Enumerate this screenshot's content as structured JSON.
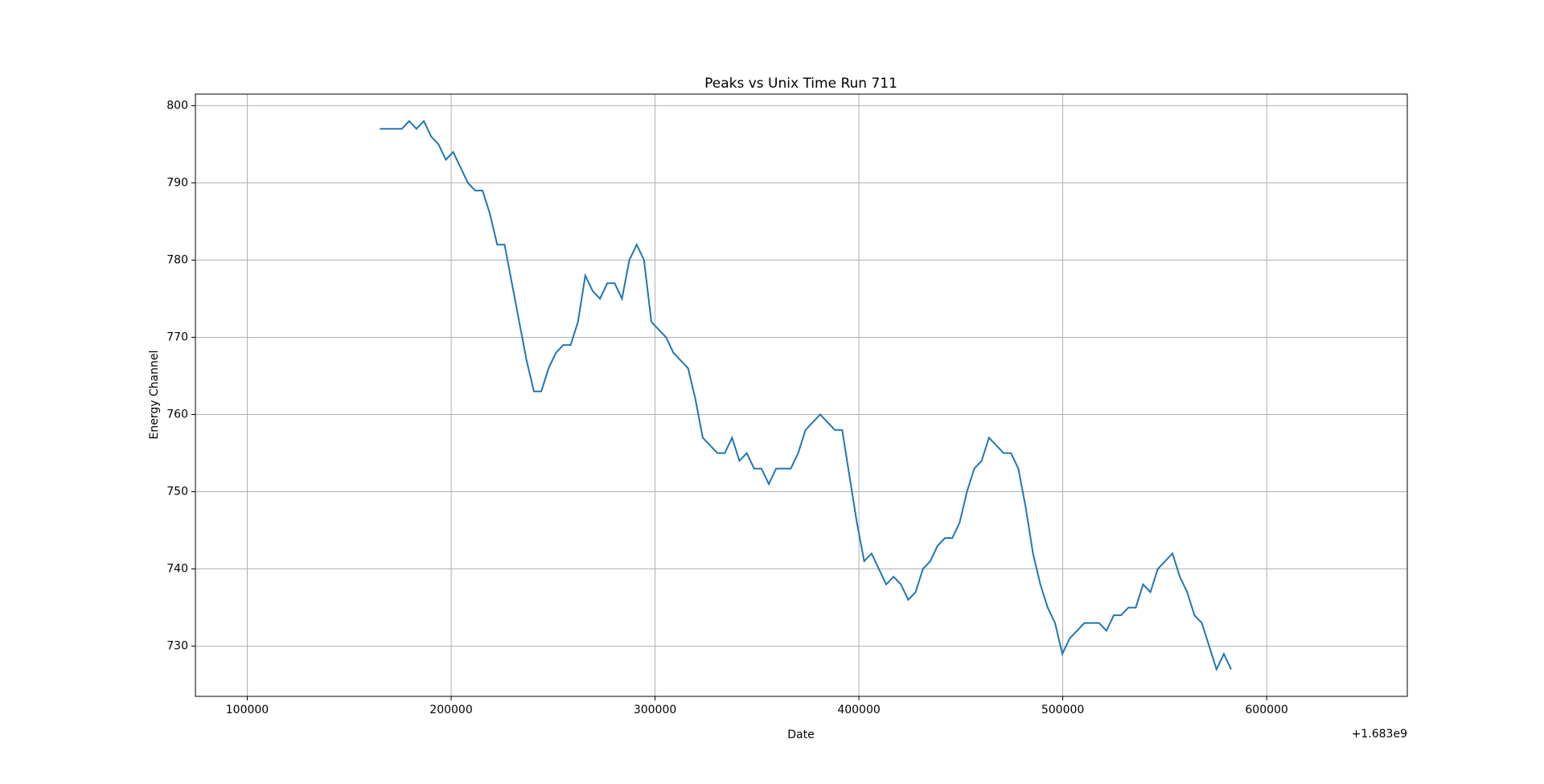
{
  "chart_data": {
    "type": "line",
    "title": "Peaks vs Unix Time Run 711",
    "x_label": "Date",
    "y_label": "Energy Channel",
    "x_offset_label": "+1.683e9",
    "x": [
      165000,
      168600,
      172200,
      175800,
      179400,
      183000,
      186600,
      190200,
      193800,
      197400,
      201000,
      204600,
      208200,
      211800,
      215400,
      219000,
      222600,
      226200,
      229800,
      233400,
      237000,
      240600,
      244200,
      247800,
      251400,
      255000,
      258600,
      262200,
      265800,
      269400,
      273000,
      276600,
      280200,
      283800,
      287400,
      291000,
      294600,
      298200,
      301800,
      305400,
      309000,
      312600,
      316200,
      319800,
      323400,
      327000,
      330600,
      334200,
      337800,
      341400,
      345000,
      348600,
      352200,
      355800,
      359400,
      363000,
      366600,
      370200,
      373800,
      377400,
      381000,
      384600,
      388200,
      391800,
      395400,
      399000,
      402600,
      406200,
      409800,
      413400,
      417000,
      420600,
      424200,
      427800,
      431400,
      435000,
      438600,
      442200,
      445800,
      449400,
      453000,
      456600,
      460200,
      463800,
      467400,
      471000,
      474600,
      478200,
      481800,
      485400,
      489000,
      492600,
      496200,
      499800,
      503400,
      507000,
      510600,
      514200,
      517800,
      521400,
      525000,
      528600,
      532200,
      535800,
      539400,
      543000,
      546600,
      550200,
      553800,
      557400,
      561000,
      564600,
      568200,
      571800,
      575400,
      579000,
      582600
    ],
    "series": [
      {
        "name": "Peaks",
        "color": "#1f77b4",
        "values": [
          797,
          797,
          797,
          797,
          798,
          797,
          798,
          796,
          795,
          793,
          794,
          792,
          790,
          789,
          789,
          786,
          782,
          782,
          777,
          772,
          767,
          763,
          763,
          766,
          768,
          769,
          769,
          772,
          778,
          776,
          775,
          777,
          777,
          775,
          780,
          782,
          780,
          772,
          771,
          770,
          768,
          767,
          766,
          762,
          757,
          756,
          755,
          755,
          757,
          754,
          755,
          753,
          753,
          751,
          753,
          753,
          753,
          755,
          758,
          759,
          760,
          759,
          758,
          758,
          752,
          746,
          741,
          742,
          740,
          738,
          739,
          738,
          736,
          737,
          740,
          741,
          743,
          744,
          744,
          746,
          750,
          753,
          754,
          757,
          756,
          755,
          755,
          753,
          748,
          742,
          738,
          735,
          733,
          729,
          731,
          732,
          733,
          733,
          733,
          732,
          734,
          734,
          735,
          735,
          738,
          737,
          740,
          741,
          742,
          739,
          737,
          734,
          733,
          730,
          727,
          729,
          727
        ]
      }
    ],
    "xlim": [
      74560,
      668982
    ],
    "ylim": [
      723.5,
      801.5
    ],
    "xticks": [
      100000,
      200000,
      300000,
      400000,
      500000,
      600000
    ],
    "yticks": [
      730,
      740,
      750,
      760,
      770,
      780,
      790,
      800
    ],
    "grid": true
  }
}
